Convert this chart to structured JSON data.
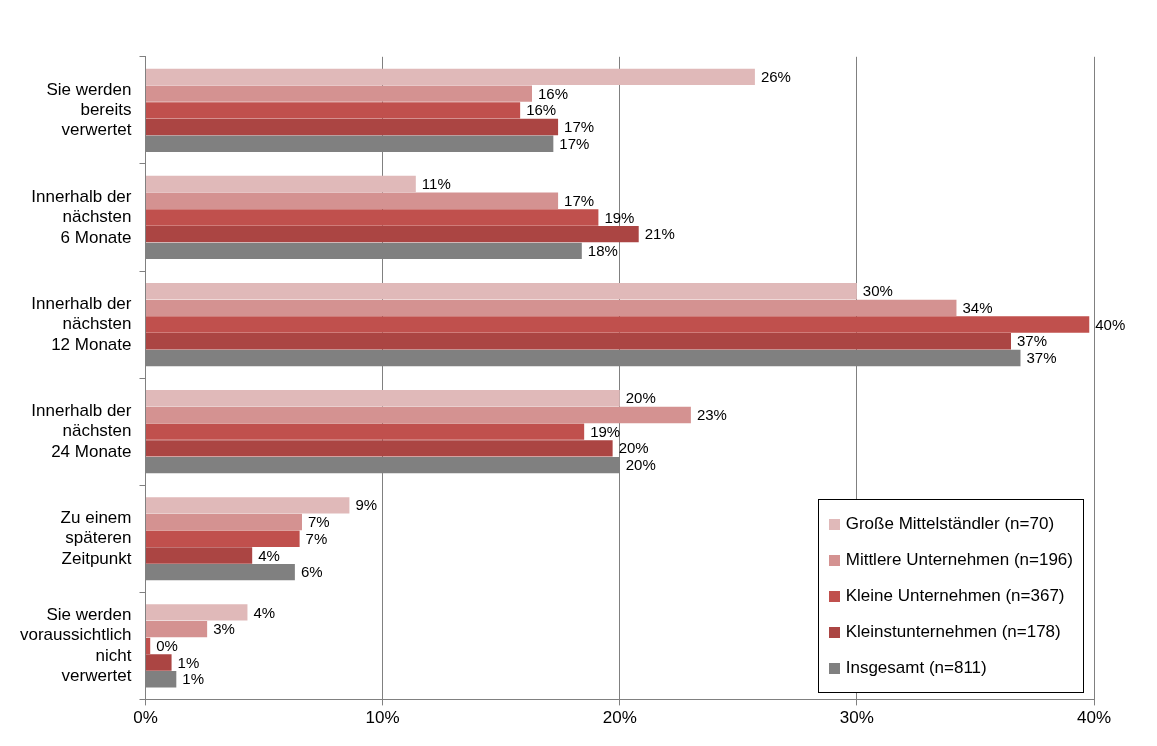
{
  "chart_data": {
    "type": "bar",
    "orientation": "horizontal",
    "categories": [
      "Sie werden bereits verwertet",
      "Innerhalb der nächsten 6 Monate",
      "Innerhalb der nächsten 12 Monate",
      "Innerhalb der nächsten 24 Monate",
      "Zu einem späteren Zeitpunkt",
      "Sie werden voraussichtlich nicht verwertet"
    ],
    "series": [
      {
        "name": "Große Mittelständler (n=70)",
        "color": "#e0b9b9",
        "values": [
          25.7,
          11.4,
          30.0,
          20.0,
          8.6,
          4.3
        ],
        "value_labels": [
          "26%",
          "11%",
          "30%",
          "20%",
          "9%",
          "4%"
        ]
      },
      {
        "name": "Mittlere Unternehmen (n=196)",
        "color": "#d49291",
        "values": [
          16.3,
          17.4,
          34.2,
          23.0,
          6.6,
          2.6
        ],
        "value_labels": [
          "16%",
          "17%",
          "34%",
          "23%",
          "7%",
          "3%"
        ]
      },
      {
        "name": "Kleine Unternehmen (n=367)",
        "color": "#c0504d",
        "values": [
          15.8,
          19.1,
          39.8,
          18.5,
          6.5,
          0.2
        ],
        "value_labels": [
          "16%",
          "19%",
          "40%",
          "19%",
          "7%",
          "0%"
        ]
      },
      {
        "name": "Kleinstunternehmen (n=178)",
        "color": "#ab4543",
        "values": [
          17.4,
          20.8,
          36.5,
          19.7,
          4.5,
          1.1
        ],
        "value_labels": [
          "17%",
          "21%",
          "37%",
          "20%",
          "4%",
          "1%"
        ]
      },
      {
        "name": "Insgesamt (n=811)",
        "color": "#808080",
        "values": [
          17.2,
          18.4,
          36.9,
          20.0,
          6.3,
          1.3
        ],
        "value_labels": [
          "17%",
          "18%",
          "37%",
          "20%",
          "6%",
          "1%"
        ]
      }
    ],
    "xlim": [
      0,
      40
    ],
    "xticks": [
      {
        "value": 0,
        "label": "0%"
      },
      {
        "value": 10,
        "label": "10%"
      },
      {
        "value": 20,
        "label": "20%"
      },
      {
        "value": 30,
        "label": "30%"
      },
      {
        "value": 40,
        "label": "40%"
      }
    ],
    "grid": "x",
    "legend": "bottom right"
  }
}
